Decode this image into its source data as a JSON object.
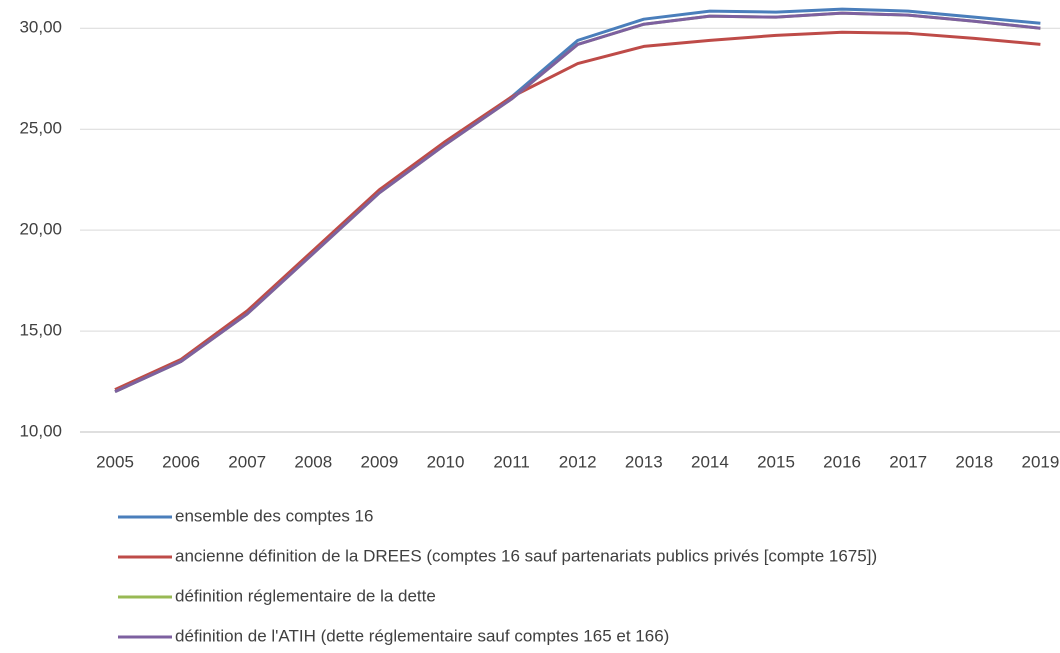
{
  "chart_data": {
    "type": "line",
    "categories": [
      "2005",
      "2006",
      "2007",
      "2008",
      "2009",
      "2010",
      "2011",
      "2012",
      "2013",
      "2014",
      "2015",
      "2016",
      "2017",
      "2018",
      "2019"
    ],
    "series": [
      {
        "name": "ensemble des comptes 16",
        "color": "#4a7ebb",
        "values": [
          12.0,
          13.5,
          15.9,
          18.9,
          21.9,
          24.3,
          26.6,
          29.4,
          30.45,
          30.85,
          30.8,
          30.95,
          30.85,
          30.55,
          30.25
        ]
      },
      {
        "name": "ancienne définition de la DREES (comptes 16 sauf partenariats publics privés [compte 1675])",
        "color": "#be4b48",
        "values": [
          12.1,
          13.6,
          16.0,
          19.0,
          22.0,
          24.4,
          26.6,
          28.25,
          29.1,
          29.4,
          29.65,
          29.8,
          29.75,
          29.5,
          29.2
        ]
      },
      {
        "name": "définition réglementaire de la dette",
        "color": "#98b954",
        "values": [
          12.0,
          13.5,
          15.85,
          18.85,
          21.85,
          24.25,
          26.5,
          29.2,
          30.2,
          30.6,
          30.55,
          30.75,
          30.65,
          30.35,
          30.0
        ]
      },
      {
        "name": "définition de l'ATIH (dette réglementaire sauf comptes 165 et 166)",
        "color": "#7d60a0",
        "values": [
          12.0,
          13.5,
          15.85,
          18.85,
          21.85,
          24.25,
          26.5,
          29.2,
          30.2,
          30.6,
          30.55,
          30.75,
          30.65,
          30.35,
          30.0
        ]
      }
    ],
    "ylim": [
      10,
      31.4
    ],
    "yticks": [
      {
        "value": 10,
        "label": "10,00"
      },
      {
        "value": 15,
        "label": "15,00"
      },
      {
        "value": 20,
        "label": "20,00"
      },
      {
        "value": 25,
        "label": "25,00"
      },
      {
        "value": 30,
        "label": "30,00"
      }
    ],
    "grid": true,
    "legend": "bottom"
  }
}
